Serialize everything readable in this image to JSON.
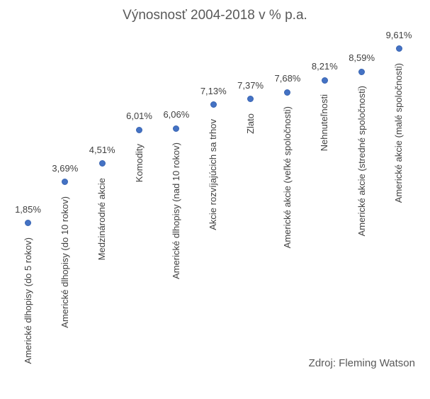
{
  "title": "Výnosnosť 2004-2018 v % p.a.",
  "source_note": "Zdroj: Fleming Watson",
  "colors": {
    "marker": "#4472C4",
    "marker_border": "#3a65b2",
    "title_text": "#595959",
    "label_text": "#404040"
  },
  "chart_data": {
    "type": "scatter",
    "title": "Výnosnosť 2004-2018 v % p.a.",
    "categories": [
      "Americké dlhopisy (do 5 rokov)",
      "Americké dlhopisy (do 10 rokov)",
      "Medzinárodné akcie",
      "Komodity",
      "Americké dlhopisy (nad 10 rokov)",
      "Akcie rozvíjajúcich sa trhov",
      "Zlato",
      "Americké akcie (veľké spoločnosti)",
      "Nehnuteľnosti",
      "Americké akcie (stredné spoločnosti)",
      "Americké akcie (malé spoločnosti)"
    ],
    "values": [
      1.85,
      3.69,
      4.51,
      6.01,
      6.06,
      7.13,
      7.37,
      7.68,
      8.21,
      8.59,
      9.61
    ],
    "value_labels": [
      "1,85%",
      "3,69%",
      "4,51%",
      "6,01%",
      "6,06%",
      "7,13%",
      "7,37%",
      "7,68%",
      "8,21%",
      "8,59%",
      "9,61%"
    ],
    "xlabel": "",
    "ylabel": "",
    "ylim": [
      0,
      11
    ],
    "grid": false,
    "axes_visible": false,
    "legend": "none",
    "value_label_position": "above",
    "category_label_position": "below-point-rotated-90",
    "annotation": "Zdroj: Fleming Watson"
  }
}
